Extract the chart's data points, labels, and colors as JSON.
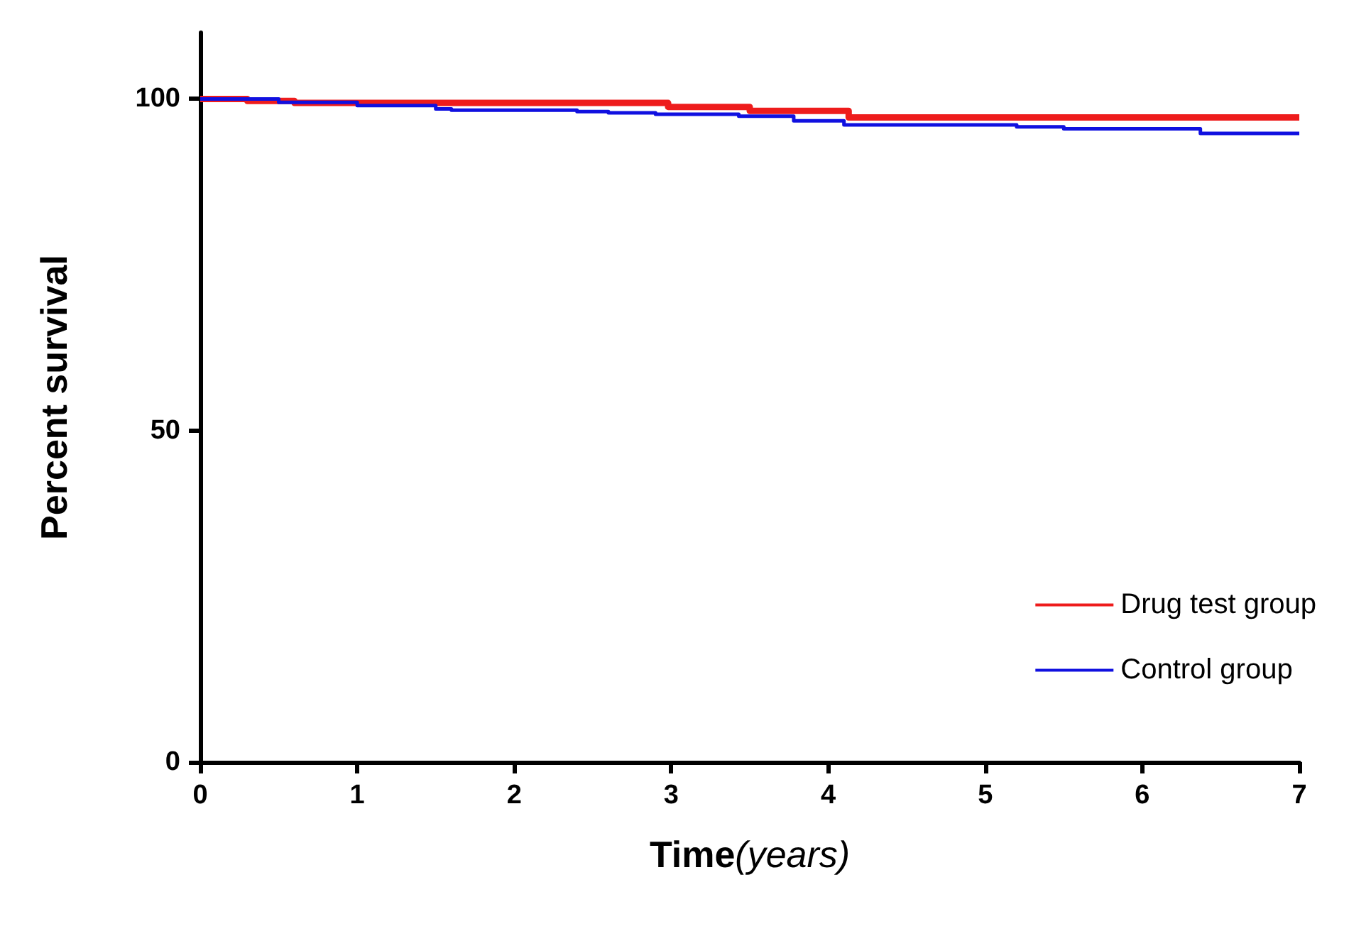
{
  "chart_data": {
    "type": "step",
    "xlabel": "Time(years)",
    "ylabel": "Percent survival",
    "xlim": [
      0,
      7
    ],
    "xticks": [
      0,
      1,
      2,
      3,
      4,
      5,
      6,
      7
    ],
    "ylim": [
      0,
      110
    ],
    "yticks": [
      0,
      50,
      100
    ],
    "grid": false,
    "legend": "right",
    "marker": "none",
    "line_style": "solid",
    "series": [
      {
        "name": "Drug test group",
        "color": "#ee1c1c",
        "x": [
          0,
          0.3,
          0.6,
          2.98,
          3.5,
          4.13,
          7
        ],
        "values": [
          100,
          99.7,
          99.4,
          98.8,
          98.2,
          97.2,
          97.2
        ]
      },
      {
        "name": "Control group",
        "color": "#1010e0",
        "x": [
          0,
          0.5,
          1.0,
          1.5,
          1.6,
          2.4,
          2.6,
          2.9,
          3.43,
          3.78,
          4.1,
          5.2,
          5.5,
          6.37,
          7
        ],
        "values": [
          100,
          99.5,
          99.0,
          98.5,
          98.3,
          98.1,
          97.9,
          97.7,
          97.4,
          96.7,
          96.1,
          95.8,
          95.5,
          94.8,
          94.8
        ]
      }
    ]
  }
}
